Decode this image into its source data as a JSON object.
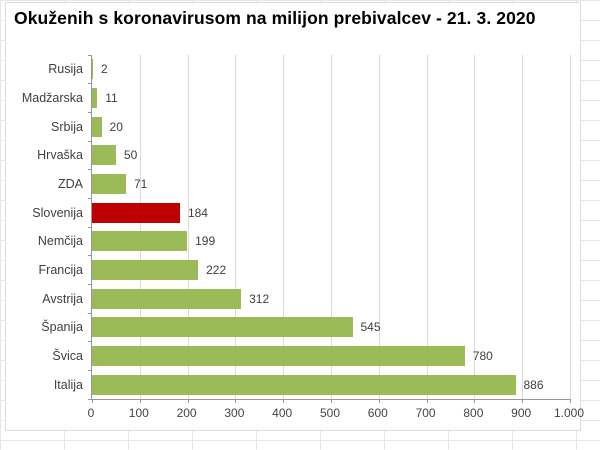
{
  "chart_data": {
    "type": "bar",
    "orientation": "horizontal",
    "title": "Okuženih s koronavirusom na milijon prebivalcev - 21. 3. 2020",
    "categories": [
      "Rusija",
      "Madžarska",
      "Srbija",
      "Hrvaška",
      "ZDA",
      "Slovenija",
      "Nemčija",
      "Francija",
      "Avstrija",
      "Španija",
      "Švica",
      "Italija"
    ],
    "values": [
      2,
      11,
      20,
      50,
      71,
      184,
      199,
      222,
      312,
      545,
      780,
      886
    ],
    "value_labels": [
      "2",
      "11",
      "20",
      "50",
      "71",
      "184",
      "199",
      "222",
      "312",
      "545",
      "780",
      "886"
    ],
    "bar_colors": [
      "#9BBB59",
      "#9BBB59",
      "#9BBB59",
      "#9BBB59",
      "#9BBB59",
      "#C00000",
      "#9BBB59",
      "#9BBB59",
      "#9BBB59",
      "#9BBB59",
      "#9BBB59",
      "#9BBB59"
    ],
    "highlighted_category": "Slovenija",
    "highlight_color": "#C00000",
    "default_bar_color": "#9BBB59",
    "xlabel": "",
    "ylabel": "",
    "xlim": [
      0,
      1000
    ],
    "x_ticks": [
      0,
      100,
      200,
      300,
      400,
      500,
      600,
      700,
      800,
      900,
      1000
    ],
    "x_tick_labels": [
      "0",
      "100",
      "200",
      "300",
      "400",
      "500",
      "600",
      "700",
      "800",
      "900",
      "1.000"
    ],
    "grid": "vertical",
    "legend": "none"
  },
  "style": {
    "gridline_color": "#d9d9d9",
    "axis_color": "#969696",
    "label_color": "#3f3f3f"
  }
}
